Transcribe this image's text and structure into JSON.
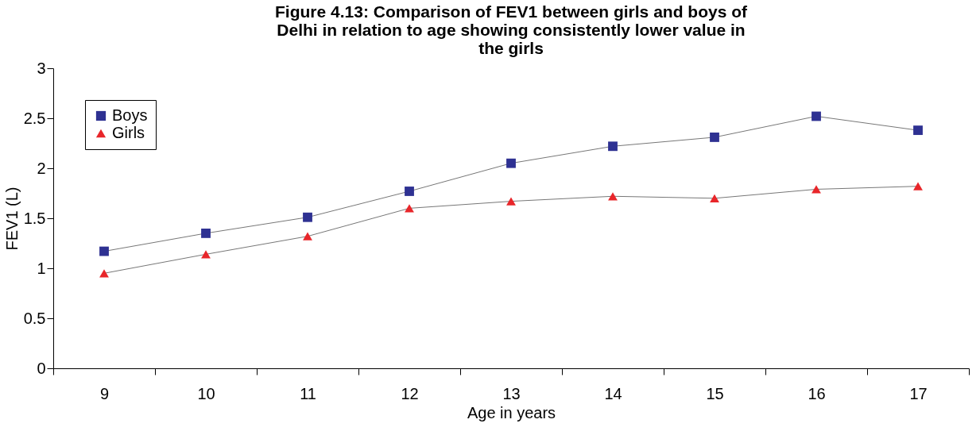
{
  "chart_data": {
    "type": "line",
    "title": "Figure 4.13: Comparison of FEV1 between girls and boys of Delhi in relation to age showing consistently lower value in the girls",
    "xlabel": "Age in years",
    "ylabel": "FEV1 (L)",
    "categories": [
      "9",
      "10",
      "11",
      "12",
      "13",
      "14",
      "15",
      "16",
      "17"
    ],
    "series": [
      {
        "name": "Boys",
        "color": "#2e3192",
        "marker": "square",
        "values": [
          1.17,
          1.35,
          1.51,
          1.77,
          2.05,
          2.22,
          2.31,
          2.52,
          2.38
        ]
      },
      {
        "name": "Girls",
        "color": "#e8262a",
        "marker": "triangle",
        "values": [
          0.95,
          1.14,
          1.32,
          1.6,
          1.67,
          1.72,
          1.7,
          1.79,
          1.82
        ]
      }
    ],
    "ylim": [
      0,
      3
    ],
    "yticks": [
      0,
      0.5,
      1,
      1.5,
      2,
      2.5,
      3
    ],
    "grid": false,
    "legend": "top left",
    "line_style": "solid"
  }
}
